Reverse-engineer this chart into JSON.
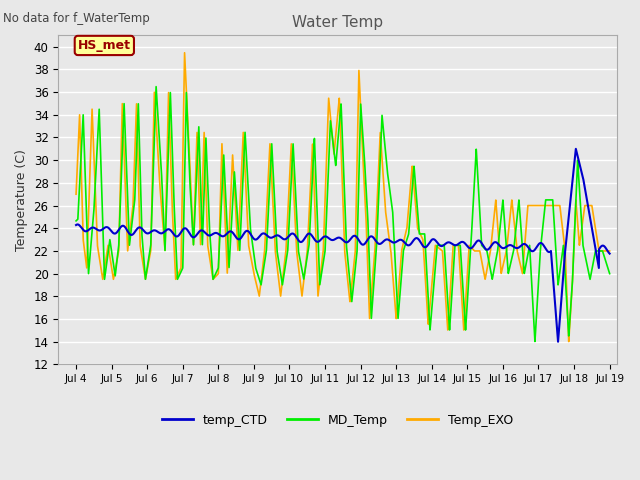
{
  "title": "Water Temp",
  "ylabel": "Temperature (C)",
  "no_data_text": "No data for f_WaterTemp",
  "annotation_text": "HS_met",
  "xlim_days": [
    3.5,
    19.2
  ],
  "ylim": [
    12,
    41
  ],
  "yticks": [
    12,
    14,
    16,
    18,
    20,
    22,
    24,
    26,
    28,
    30,
    32,
    34,
    36,
    38,
    40
  ],
  "xtick_labels": [
    "Jul 4",
    "Jul 5",
    "Jul 6",
    "Jul 7",
    "Jul 8",
    "Jul 9",
    "Jul 10",
    "Jul 11",
    "Jul 12",
    "Jul 13",
    "Jul 14",
    "Jul 15",
    "Jul 16",
    "Jul 17",
    "Jul 18",
    "Jul 19"
  ],
  "xtick_positions": [
    4,
    5,
    6,
    7,
    8,
    9,
    10,
    11,
    12,
    13,
    14,
    15,
    16,
    17,
    18,
    19
  ],
  "colors": {
    "temp_CTD": "#0000cc",
    "MD_Temp": "#00ee00",
    "Temp_EXO": "#ffaa00",
    "background": "#e8e8e8",
    "grid": "#ffffff",
    "annotation_bg": "#ffff99",
    "annotation_border": "#990000",
    "annotation_text": "#990000"
  },
  "legend_labels": [
    "temp_CTD",
    "MD_Temp",
    "Temp_EXO"
  ],
  "title_color": "#555555",
  "no_data_color": "#444444",
  "fig_bg": "#e8e8e8"
}
